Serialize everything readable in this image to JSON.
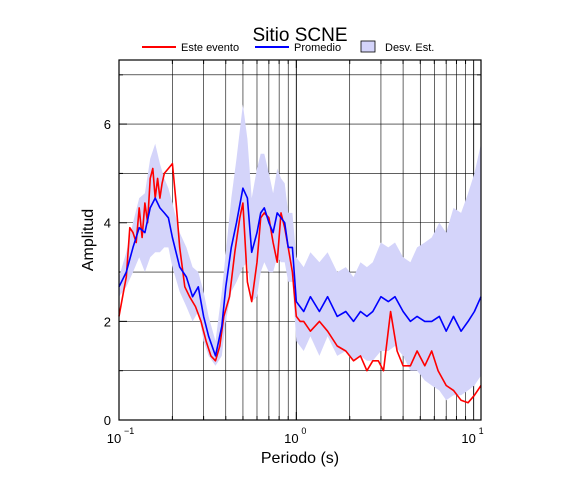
{
  "chart_data": {
    "type": "line",
    "title": "Sitio SCNE",
    "xlabel": "Periodo (s)",
    "ylabel": "Amplitud",
    "xscale": "log",
    "xlim": [
      0.1,
      11
    ],
    "ylim": [
      0,
      7.3
    ],
    "grid": true,
    "legend_position": "top",
    "x_tick_labels": [
      {
        "base": "10",
        "exp": "−1",
        "value": 0.1
      },
      {
        "base": "10",
        "exp": "0",
        "value": 1
      },
      {
        "base": "10",
        "exp": "1",
        "value": 10
      }
    ],
    "y_ticks": [
      0,
      2,
      4,
      6
    ],
    "legend": {
      "este_evento": "Este evento",
      "promedio": "Promedio",
      "desv_est": "Desv. Est."
    },
    "colors": {
      "este_evento": "#ff0000",
      "promedio": "#0000ff",
      "band": "#d4d4fa"
    },
    "series": [
      {
        "name": "Este evento",
        "x": [
          0.1,
          0.106,
          0.11,
          0.115,
          0.12,
          0.125,
          0.13,
          0.135,
          0.14,
          0.145,
          0.15,
          0.155,
          0.16,
          0.165,
          0.17,
          0.175,
          0.18,
          0.19,
          0.2,
          0.21,
          0.22,
          0.235,
          0.25,
          0.27,
          0.29,
          0.31,
          0.33,
          0.35,
          0.37,
          0.39,
          0.42,
          0.45,
          0.48,
          0.5,
          0.53,
          0.56,
          0.6,
          0.63,
          0.66,
          0.7,
          0.74,
          0.78,
          0.82,
          0.86,
          0.9,
          0.95,
          1.0,
          1.05,
          1.1,
          1.2,
          1.35,
          1.5,
          1.7,
          1.9,
          2.1,
          2.3,
          2.5,
          2.7,
          2.9,
          3.1,
          3.4,
          3.7,
          4.0,
          4.4,
          4.8,
          5.3,
          5.8,
          6.3,
          7.0,
          7.7,
          8.5,
          9.3,
          10.1,
          11.0
        ],
        "values": [
          2.1,
          2.6,
          2.9,
          3.9,
          3.8,
          3.6,
          4.3,
          3.7,
          4.4,
          4.0,
          4.9,
          5.1,
          4.5,
          4.9,
          4.5,
          4.8,
          5.0,
          5.1,
          5.2,
          4.4,
          3.5,
          2.7,
          2.5,
          2.3,
          2.0,
          1.6,
          1.3,
          1.2,
          1.5,
          2.1,
          2.5,
          3.4,
          4.1,
          4.4,
          2.8,
          2.4,
          3.2,
          4.1,
          4.2,
          4.1,
          3.6,
          3.2,
          4.2,
          3.9,
          3.5,
          3.0,
          2.1,
          2.0,
          2.0,
          1.8,
          2.0,
          1.8,
          1.5,
          1.4,
          1.2,
          1.3,
          1.0,
          1.2,
          1.2,
          1.0,
          2.2,
          1.4,
          1.1,
          1.1,
          1.4,
          1.1,
          1.4,
          1.0,
          0.7,
          0.6,
          0.4,
          0.35,
          0.5,
          0.7
        ]
      },
      {
        "name": "Promedio",
        "x": [
          0.1,
          0.11,
          0.12,
          0.13,
          0.14,
          0.15,
          0.16,
          0.17,
          0.18,
          0.19,
          0.2,
          0.22,
          0.24,
          0.26,
          0.28,
          0.3,
          0.32,
          0.35,
          0.38,
          0.4,
          0.43,
          0.46,
          0.5,
          0.53,
          0.56,
          0.6,
          0.63,
          0.66,
          0.7,
          0.74,
          0.78,
          0.82,
          0.86,
          0.9,
          0.95,
          1.0,
          1.1,
          1.2,
          1.35,
          1.5,
          1.7,
          1.9,
          2.1,
          2.3,
          2.5,
          2.7,
          3.0,
          3.3,
          3.6,
          4.0,
          4.4,
          4.8,
          5.3,
          5.8,
          6.4,
          7.0,
          7.7,
          8.5,
          9.3,
          10.1,
          11.0
        ],
        "values": [
          2.7,
          3.0,
          3.5,
          3.9,
          3.8,
          4.3,
          4.5,
          4.3,
          4.2,
          4.1,
          3.7,
          3.1,
          2.9,
          2.5,
          2.7,
          2.1,
          1.7,
          1.3,
          1.9,
          2.7,
          3.5,
          4.0,
          4.7,
          4.5,
          3.4,
          3.8,
          4.2,
          4.3,
          4.0,
          3.8,
          4.2,
          4.1,
          4.0,
          3.5,
          3.5,
          2.4,
          2.2,
          2.5,
          2.2,
          2.5,
          2.1,
          2.2,
          2.0,
          2.2,
          2.1,
          2.2,
          2.5,
          2.4,
          2.5,
          2.2,
          2.0,
          2.1,
          2.0,
          2.0,
          2.1,
          1.8,
          2.1,
          1.8,
          2.0,
          2.2,
          2.5
        ]
      },
      {
        "name": "Desv. Est.",
        "x": [
          0.1,
          0.11,
          0.12,
          0.13,
          0.14,
          0.15,
          0.16,
          0.17,
          0.18,
          0.19,
          0.2,
          0.22,
          0.24,
          0.26,
          0.28,
          0.3,
          0.32,
          0.35,
          0.38,
          0.4,
          0.43,
          0.46,
          0.5,
          0.53,
          0.56,
          0.6,
          0.63,
          0.66,
          0.7,
          0.74,
          0.78,
          0.82,
          0.86,
          0.9,
          0.95,
          1.0,
          1.1,
          1.2,
          1.35,
          1.5,
          1.7,
          1.9,
          2.1,
          2.3,
          2.5,
          2.7,
          3.0,
          3.3,
          3.6,
          4.0,
          4.4,
          4.8,
          5.3,
          5.8,
          6.4,
          7.0,
          7.7,
          8.5,
          9.3,
          10.1,
          11.0
        ],
        "upper": [
          2.9,
          3.4,
          4.0,
          4.5,
          4.6,
          5.3,
          5.6,
          5.2,
          4.9,
          4.7,
          4.4,
          3.8,
          3.5,
          3.1,
          3.0,
          2.6,
          2.1,
          1.6,
          2.6,
          3.4,
          4.5,
          5.3,
          6.4,
          5.7,
          4.5,
          5.1,
          5.4,
          5.4,
          5.0,
          4.6,
          5.1,
          4.9,
          4.8,
          4.2,
          4.2,
          3.3,
          3.1,
          3.4,
          3.2,
          3.4,
          3.0,
          3.1,
          2.9,
          3.2,
          3.1,
          3.2,
          3.6,
          3.5,
          3.6,
          3.3,
          3.2,
          3.5,
          3.6,
          3.7,
          4.0,
          3.8,
          4.3,
          4.2,
          4.6,
          5.0,
          5.6
        ],
        "lower": [
          2.5,
          2.7,
          3.0,
          3.3,
          3.0,
          3.3,
          3.4,
          3.4,
          3.5,
          3.5,
          3.1,
          2.6,
          2.3,
          2.0,
          2.2,
          1.6,
          1.3,
          1.1,
          1.3,
          2.0,
          2.6,
          2.8,
          3.1,
          3.2,
          2.4,
          2.5,
          3.0,
          3.2,
          3.0,
          3.0,
          3.3,
          3.2,
          3.2,
          2.8,
          2.8,
          1.6,
          1.4,
          1.7,
          1.3,
          1.7,
          1.3,
          1.4,
          1.2,
          1.3,
          1.2,
          1.2,
          1.4,
          1.4,
          1.5,
          1.3,
          1.0,
          1.0,
          0.8,
          0.7,
          0.6,
          0.4,
          0.5,
          0.5,
          0.6,
          0.7,
          0.9
        ]
      }
    ]
  }
}
